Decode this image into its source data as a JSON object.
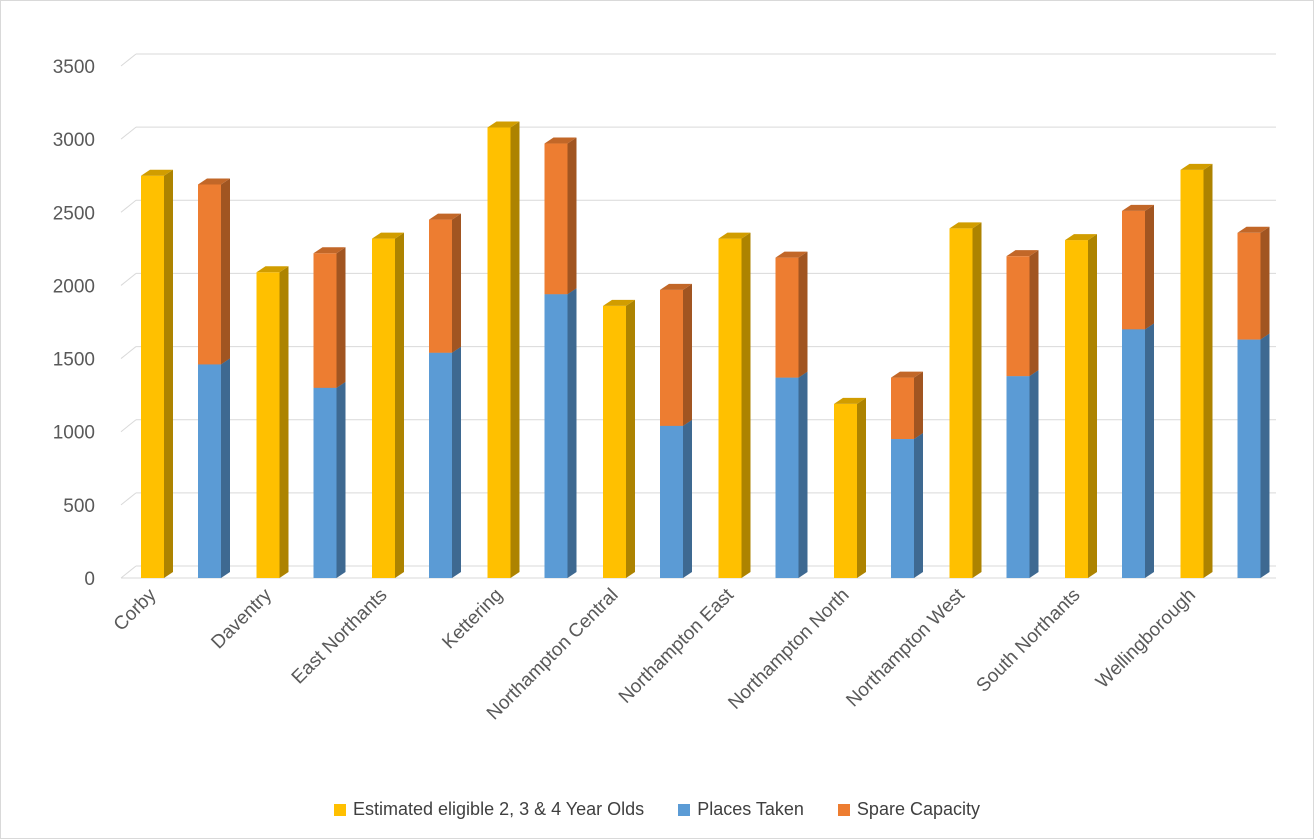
{
  "chart_data": {
    "type": "bar",
    "subtype": "3d-column, clustered-and-stacked",
    "categories": [
      "Corby",
      "Daventry",
      "East Northants",
      "Kettering",
      "Northampton Central",
      "Northampton East",
      "Northampton North",
      "Northampton West",
      "South Northants",
      "Wellingborough"
    ],
    "series": [
      {
        "name": "Estimated eligible 2, 3 & 4 Year Olds",
        "color": "#ffc000",
        "stack": "A",
        "values": [
          2750,
          2090,
          2320,
          3080,
          1860,
          2320,
          1190,
          2390,
          2310,
          2790
        ]
      },
      {
        "name": "Places Taken",
        "color": "#5b9bd5",
        "stack": "B",
        "values": [
          1460,
          1300,
          1540,
          1940,
          1040,
          1370,
          950,
          1380,
          1700,
          1630
        ]
      },
      {
        "name": "Spare Capacity",
        "color": "#ed7d31",
        "stack": "B",
        "values": [
          1230,
          920,
          910,
          1030,
          930,
          820,
          420,
          820,
          810,
          730
        ]
      }
    ],
    "ylim": [
      0,
      3500
    ],
    "yticks": [
      0,
      500,
      1000,
      1500,
      2000,
      2500,
      3000,
      3500
    ],
    "grid": true,
    "legend": "bottom"
  }
}
